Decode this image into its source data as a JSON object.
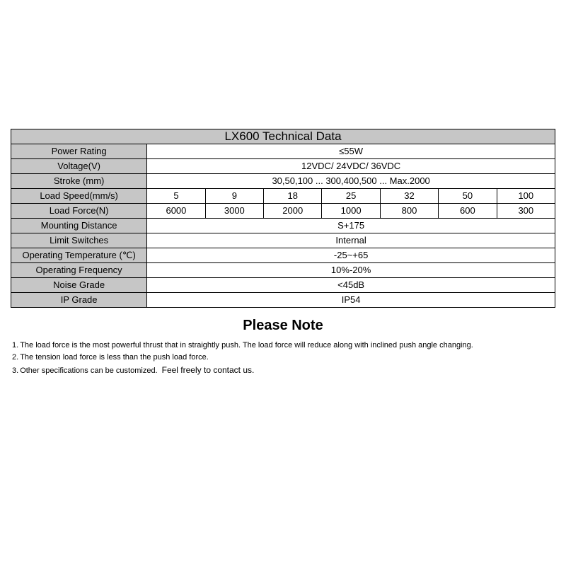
{
  "table": {
    "title": "LX600 Technical Data",
    "label_bg": "#c6c6c6",
    "value_bg": "#ffffff",
    "border_color": "#000000",
    "col1_width_pct": 25,
    "data_cols": 7,
    "rows": [
      {
        "label": "Power Rating",
        "value": "≤55W"
      },
      {
        "label": "Voltage(V)",
        "value": "12VDC/ 24VDC/ 36VDC"
      },
      {
        "label": "Stroke (mm)",
        "value": "30,50,100 ... 300,400,500 ... Max.2000"
      },
      {
        "label": "Load Speed(mm/s)",
        "cells": [
          "5",
          "9",
          "18",
          "25",
          "32",
          "50",
          "100"
        ]
      },
      {
        "label": "Load Force(N)",
        "cells": [
          "6000",
          "3000",
          "2000",
          "1000",
          "800",
          "600",
          "300"
        ]
      },
      {
        "label": "Mounting Distance",
        "value": "S+175"
      },
      {
        "label": "Limit Switches",
        "value": "Internal"
      },
      {
        "label": "Operating Temperature (℃)",
        "value": "-25~+65"
      },
      {
        "label": "Operating Frequency",
        "value": "10%-20%"
      },
      {
        "label": "Noise Grade",
        "value": "<45dB"
      },
      {
        "label": "IP Grade",
        "value": "IP54"
      }
    ]
  },
  "notes": {
    "header": "Please Note",
    "items": [
      {
        "num": "1.",
        "main": "The load force is the most powerful thrust that in straightly push. The load force will reduce along with inclined push angle changing.",
        "extra": ""
      },
      {
        "num": "2.",
        "main": "The tension load force is less than the push load force.",
        "extra": ""
      },
      {
        "num": "3.",
        "main": "Other specifications can be customized.",
        "extra": "Feel freely to contact us."
      }
    ]
  }
}
